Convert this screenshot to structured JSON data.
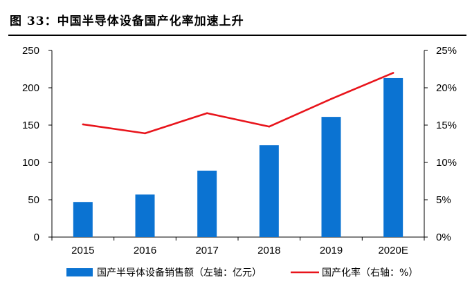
{
  "figure": {
    "title": "图 33：中国半导体设备国产化率加速上升"
  },
  "chart_data": {
    "type": "bar",
    "categories": [
      "2015",
      "2016",
      "2017",
      "2018",
      "2019",
      "2020E"
    ],
    "series": [
      {
        "name": "国产半导体设备销售额（左轴：亿元）",
        "type": "bar",
        "axis": "left",
        "values": [
          47,
          57,
          89,
          123,
          161,
          213
        ],
        "color": "#0B73D2"
      },
      {
        "name": "国产化率（右轴：%）",
        "type": "line",
        "axis": "right",
        "values": [
          15.1,
          13.9,
          16.6,
          14.8,
          18.5,
          22.0
        ],
        "color": "#E8141B"
      }
    ],
    "yticks_left": [
      "0",
      "50",
      "100",
      "150",
      "200",
      "250"
    ],
    "yticks_right": [
      "0%",
      "5%",
      "10%",
      "15%",
      "20%",
      "25%"
    ],
    "ylim_left": [
      0,
      250
    ],
    "ylim_right": [
      0,
      25
    ],
    "grid": false,
    "legend": "bottom"
  }
}
